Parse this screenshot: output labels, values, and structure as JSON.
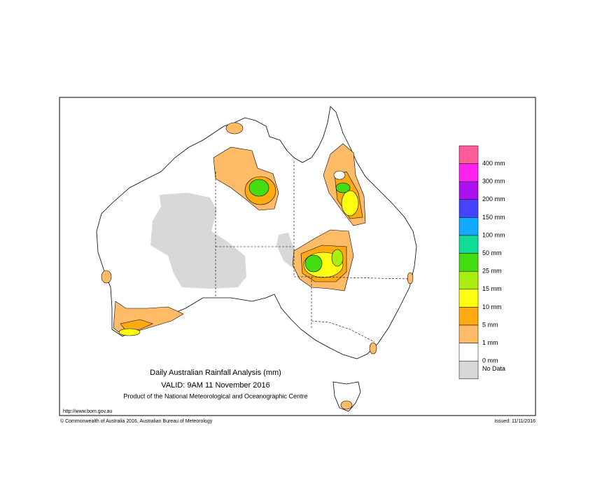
{
  "header": {
    "title": "Daily Australian Rainfall Analysis (mm)",
    "valid": "VALID: 9AM 11 November 2016",
    "product": "Product of the National Meteorological and Oceanographic Centre"
  },
  "footer": {
    "url": "http://www.bom.gov.au",
    "copyright": "© Commonwealth of Australia 2016, Australian Bureau of Meteorology",
    "issued": "Issued: 11/11/2016"
  },
  "legend": {
    "colors": [
      "#ff5a9a",
      "#ff22ee",
      "#aa11ee",
      "#4444ff",
      "#11aaff",
      "#11dd99",
      "#44dd11",
      "#aaee11",
      "#ffff11",
      "#ffaa11",
      "#ffbb66",
      "#ffffff",
      "#d8d8d8"
    ],
    "labels": [
      "400 mm",
      "300 mm",
      "200 mm",
      "150 mm",
      "100 mm",
      "50 mm",
      "25 mm",
      "15 mm",
      "10 mm",
      "5 mm",
      "1 mm",
      "0 mm"
    ],
    "nodata": "No Data"
  }
}
